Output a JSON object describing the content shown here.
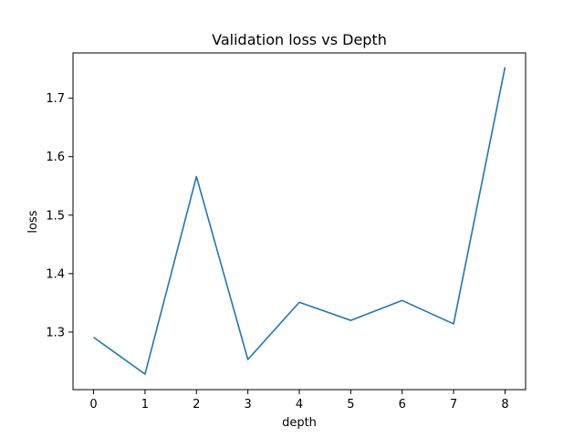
{
  "chart_data": {
    "type": "line",
    "title": "Validation loss vs Depth",
    "xlabel": "depth",
    "ylabel": "loss",
    "x": [
      0,
      1,
      2,
      3,
      4,
      5,
      6,
      7,
      8
    ],
    "x_ticks": [
      "0",
      "1",
      "2",
      "3",
      "4",
      "5",
      "6",
      "7",
      "8"
    ],
    "y_ticks": [
      "1.3",
      "1.4",
      "1.5",
      "1.6",
      "1.7"
    ],
    "y_tick_values": [
      1.3,
      1.4,
      1.5,
      1.6,
      1.7
    ],
    "xlim": [
      -0.4,
      8.4
    ],
    "ylim": [
      1.2015,
      1.7775
    ],
    "grid": false,
    "series": [
      {
        "values": [
          1.291,
          1.228,
          1.566,
          1.253,
          1.351,
          1.32,
          1.354,
          1.314,
          1.753
        ],
        "color": "#1f77b4"
      }
    ]
  }
}
